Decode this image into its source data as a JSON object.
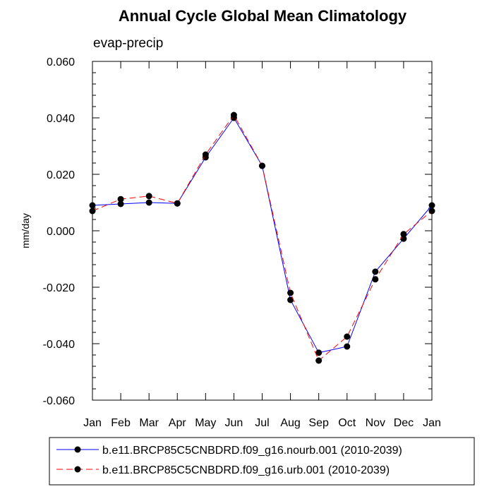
{
  "chart_data": {
    "type": "line",
    "title": "Annual Cycle Global Mean Climatology",
    "subtitle": "evap-precip",
    "xlabel": "",
    "ylabel": "mm/day",
    "categories": [
      "Jan",
      "Feb",
      "Mar",
      "Apr",
      "May",
      "Jun",
      "Jul",
      "Aug",
      "Sep",
      "Oct",
      "Nov",
      "Dec",
      "Jan"
    ],
    "ylim": [
      -0.06,
      0.06
    ],
    "yticks": [
      "0.060",
      "0.040",
      "0.020",
      "0.000",
      "-0.020",
      "-0.040",
      "-0.060"
    ],
    "ytick_values": [
      0.06,
      0.04,
      0.02,
      0.0,
      -0.02,
      -0.04,
      -0.06
    ],
    "series": [
      {
        "name": "b.e11.BRCP85C5CNBDRD.f09_g16.nourb.001 (2010-2039)",
        "color": "#0000ff",
        "dash": "solid",
        "values": [
          0.009,
          0.0095,
          0.01,
          0.0097,
          0.026,
          0.04,
          0.023,
          -0.0245,
          -0.0432,
          -0.041,
          -0.0145,
          -0.0028,
          0.009
        ]
      },
      {
        "name": "b.e11.BRCP85C5CNBDRD.f09_g16.urb.001 (2010-2039)",
        "color": "#ff0000",
        "dash": "dashed",
        "values": [
          0.007,
          0.0112,
          0.0123,
          0.0097,
          0.027,
          0.041,
          0.023,
          -0.022,
          -0.046,
          -0.0375,
          -0.0172,
          -0.0012,
          0.007
        ]
      }
    ],
    "legend_position": "bottom"
  }
}
